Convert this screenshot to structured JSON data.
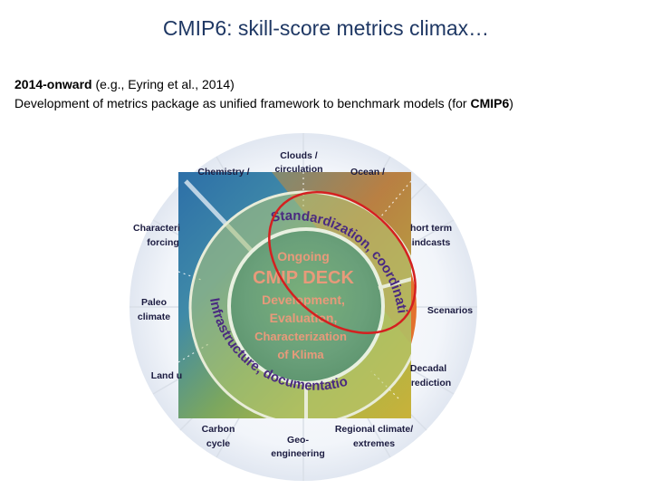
{
  "title": "CMIP6: skill-score metrics climax…",
  "line1": {
    "bold": "2014-onward",
    "rest": " (e.g., Eyring et al., 2014)"
  },
  "line2": {
    "rest": "Development of metrics package as unified framework to benchmark models (for ",
    "bold": "CMIP6",
    "end": ")"
  },
  "diagram": {
    "outer_labels": {
      "clouds": [
        "Clouds /",
        "circulation"
      ],
      "chemistry": [
        "Chemistry /"
      ],
      "ocean": [
        "Ocean /"
      ],
      "characterizing": [
        "Characteri",
        "forcing"
      ],
      "short_term": [
        "hort term",
        "indcasts"
      ],
      "paleo": [
        "Paleo",
        "climate"
      ],
      "scenarios": [
        "Scenarios"
      ],
      "land": [
        "Land u"
      ],
      "decadal": [
        "Decadal",
        "rediction"
      ],
      "carbon": [
        "Carbon",
        "cycle"
      ],
      "geo": [
        "Geo-",
        "engineering"
      ],
      "regional": [
        "Regional climate/",
        "extremes"
      ]
    },
    "ring": {
      "standardization": "Standardization, coordination",
      "infrastructure": "Infrastructure, documentation"
    },
    "center": [
      "Ongoing",
      "CMIP DECK",
      "Development,",
      "Evaluation,",
      "Characterization",
      "of Klima"
    ],
    "colors": {
      "highlight": "#d42020",
      "title": "#1f3864",
      "center_text": "#e89a7a",
      "ring_text": "#4a2a80"
    }
  }
}
